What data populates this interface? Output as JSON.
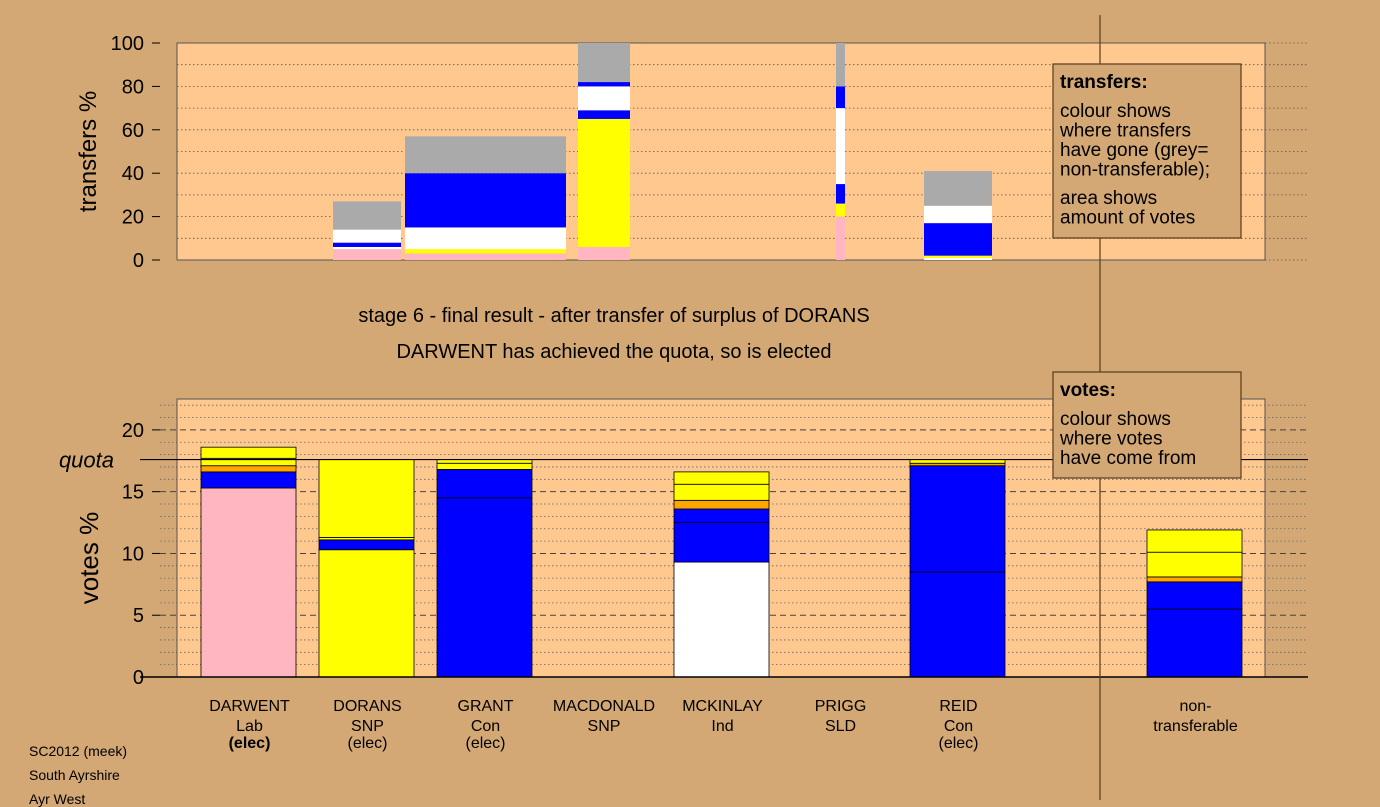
{
  "texts": {
    "stage_title": "stage 6 - final result - after transfer of surplus of DORANS",
    "elected_note": "DARWENT has achieved the quota, so is elected",
    "quota_label": "quota",
    "footer": [
      "SC2012 (meek)",
      "South Ayrshire",
      "Ayr West"
    ]
  },
  "colors": {
    "background": "#d3a875",
    "plot_bg": "#fec88e",
    "Lab": "#ffb6c1",
    "SNP": "#ffff00",
    "Con": "#0000ff",
    "Ind": "#ffffff",
    "other": "#ffa500",
    "nontransferable": "#aaaaaa"
  },
  "legends": {
    "transfers": {
      "title": "transfers:",
      "lines": [
        "colour shows",
        "where transfers",
        "have gone (grey=",
        "non-transferable);",
        "area shows",
        "amount of votes"
      ]
    },
    "votes": {
      "title": "votes:",
      "lines": [
        "colour shows",
        "where votes",
        "have come from"
      ]
    }
  },
  "chart_data": [
    {
      "type": "bar",
      "name": "transfers",
      "ylabel": "transfers %",
      "ylim": [
        0,
        100
      ],
      "yticks": [
        0,
        20,
        40,
        60,
        80,
        100
      ],
      "bars": [
        {
          "segments": [
            {
              "color": "Lab",
              "value": 5
            },
            {
              "color": "Ind",
              "value": 1
            },
            {
              "color": "Con",
              "value": 2
            },
            {
              "color": "Ind",
              "value": 6
            },
            {
              "color": "nontransferable",
              "value": 13
            }
          ]
        },
        {
          "segments": [
            {
              "color": "Lab",
              "value": 3
            },
            {
              "color": "SNP",
              "value": 2
            },
            {
              "color": "Ind",
              "value": 10
            },
            {
              "color": "Con",
              "value": 25
            },
            {
              "color": "nontransferable",
              "value": 17
            }
          ]
        },
        {
          "segments": [
            {
              "color": "Lab",
              "value": 6
            },
            {
              "color": "SNP",
              "value": 59
            },
            {
              "color": "Con",
              "value": 4
            },
            {
              "color": "Ind",
              "value": 11
            },
            {
              "color": "Con",
              "value": 2
            },
            {
              "color": "nontransferable",
              "value": 18
            }
          ]
        },
        {
          "segments": [
            {
              "color": "Lab",
              "value": 20
            },
            {
              "color": "SNP",
              "value": 6
            },
            {
              "color": "Con",
              "value": 9
            },
            {
              "color": "Ind",
              "value": 35
            },
            {
              "color": "Con",
              "value": 10
            },
            {
              "color": "nontransferable",
              "value": 20
            }
          ]
        },
        {
          "segments": [
            {
              "color": "Ind",
              "value": 1
            },
            {
              "color": "SNP",
              "value": 1
            },
            {
              "color": "Con",
              "value": 15
            },
            {
              "color": "Ind",
              "value": 8
            },
            {
              "color": "nontransferable",
              "value": 16
            }
          ]
        }
      ]
    },
    {
      "type": "bar",
      "name": "votes",
      "ylabel": "votes %",
      "ylim": [
        0,
        22.5
      ],
      "yticks": [
        0,
        5,
        10,
        15,
        20
      ],
      "quota": 17.6,
      "categories": [
        {
          "name": "DARWENT",
          "party": "Lab",
          "status": "(elec)",
          "status_bold": true
        },
        {
          "name": "DORANS",
          "party": "SNP",
          "status": "(elec)",
          "status_bold": false
        },
        {
          "name": "GRANT",
          "party": "Con",
          "status": "(elec)",
          "status_bold": false
        },
        {
          "name": "MACDONALD",
          "party": "SNP",
          "status": "",
          "status_bold": false
        },
        {
          "name": "MCKINLAY",
          "party": "Ind",
          "status": "",
          "status_bold": false
        },
        {
          "name": "PRIGG",
          "party": "SLD",
          "status": "",
          "status_bold": false
        },
        {
          "name": "REID",
          "party": "Con",
          "status": "(elec)",
          "status_bold": false
        },
        {
          "name": "",
          "party": "",
          "status": "",
          "status_bold": false
        },
        {
          "name": "non-",
          "party": "transferable",
          "status": "",
          "status_bold": false
        }
      ],
      "bars": [
        {
          "segments": [
            {
              "color": "Lab",
              "value": 15.3
            },
            {
              "color": "Con",
              "value": 1.3
            },
            {
              "color": "other",
              "value": 0.5
            },
            {
              "color": "SNP",
              "value": 0.6
            },
            {
              "color": "SNP",
              "value": 0.9
            }
          ]
        },
        {
          "segments": [
            {
              "color": "SNP",
              "value": 10.3
            },
            {
              "color": "Con",
              "value": 0.8
            },
            {
              "color": "SNP",
              "value": 0.2
            },
            {
              "color": "SNP",
              "value": 6.3
            }
          ]
        },
        {
          "segments": [
            {
              "color": "Con",
              "value": 14.5
            },
            {
              "color": "Con",
              "value": 2.3
            },
            {
              "color": "SNP",
              "value": 0.5
            },
            {
              "color": "SNP",
              "value": 0.3
            }
          ]
        },
        {
          "segments": []
        },
        {
          "segments": [
            {
              "color": "Ind",
              "value": 9.3
            },
            {
              "color": "Con",
              "value": 3.2
            },
            {
              "color": "Con",
              "value": 1.1
            },
            {
              "color": "other",
              "value": 0.7
            },
            {
              "color": "SNP",
              "value": 1.3
            },
            {
              "color": "SNP",
              "value": 1.0
            }
          ]
        },
        {
          "segments": []
        },
        {
          "segments": [
            {
              "color": "Con",
              "value": 8.5
            },
            {
              "color": "Con",
              "value": 8.6
            },
            {
              "color": "other",
              "value": 0.2
            },
            {
              "color": "SNP",
              "value": 0.3
            }
          ]
        },
        {
          "segments": []
        },
        {
          "segments": [
            {
              "color": "Con",
              "value": 5.5
            },
            {
              "color": "Con",
              "value": 2.2
            },
            {
              "color": "other",
              "value": 0.4
            },
            {
              "color": "SNP",
              "value": 2.0
            },
            {
              "color": "SNP",
              "value": 1.8
            }
          ]
        }
      ]
    }
  ]
}
